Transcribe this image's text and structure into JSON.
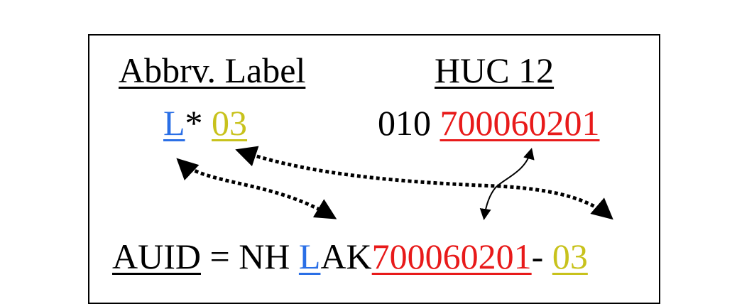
{
  "header": {
    "abbrv_label": "Abbrv. Label",
    "huc12": "HUC 12"
  },
  "label_row": {
    "letter": "L",
    "star": "*",
    "number": "03"
  },
  "huc_row": {
    "prefix": "010",
    "code": "700060201"
  },
  "auid_row": {
    "term": "AUID",
    "equals": "=",
    "state": "NH",
    "letter": "L",
    "type": "AK",
    "code": "700060201",
    "dash": "-",
    "number": "03"
  },
  "colors": {
    "letter": "#2a6fe6",
    "number": "#c8c21c",
    "code": "#e81a1a"
  }
}
